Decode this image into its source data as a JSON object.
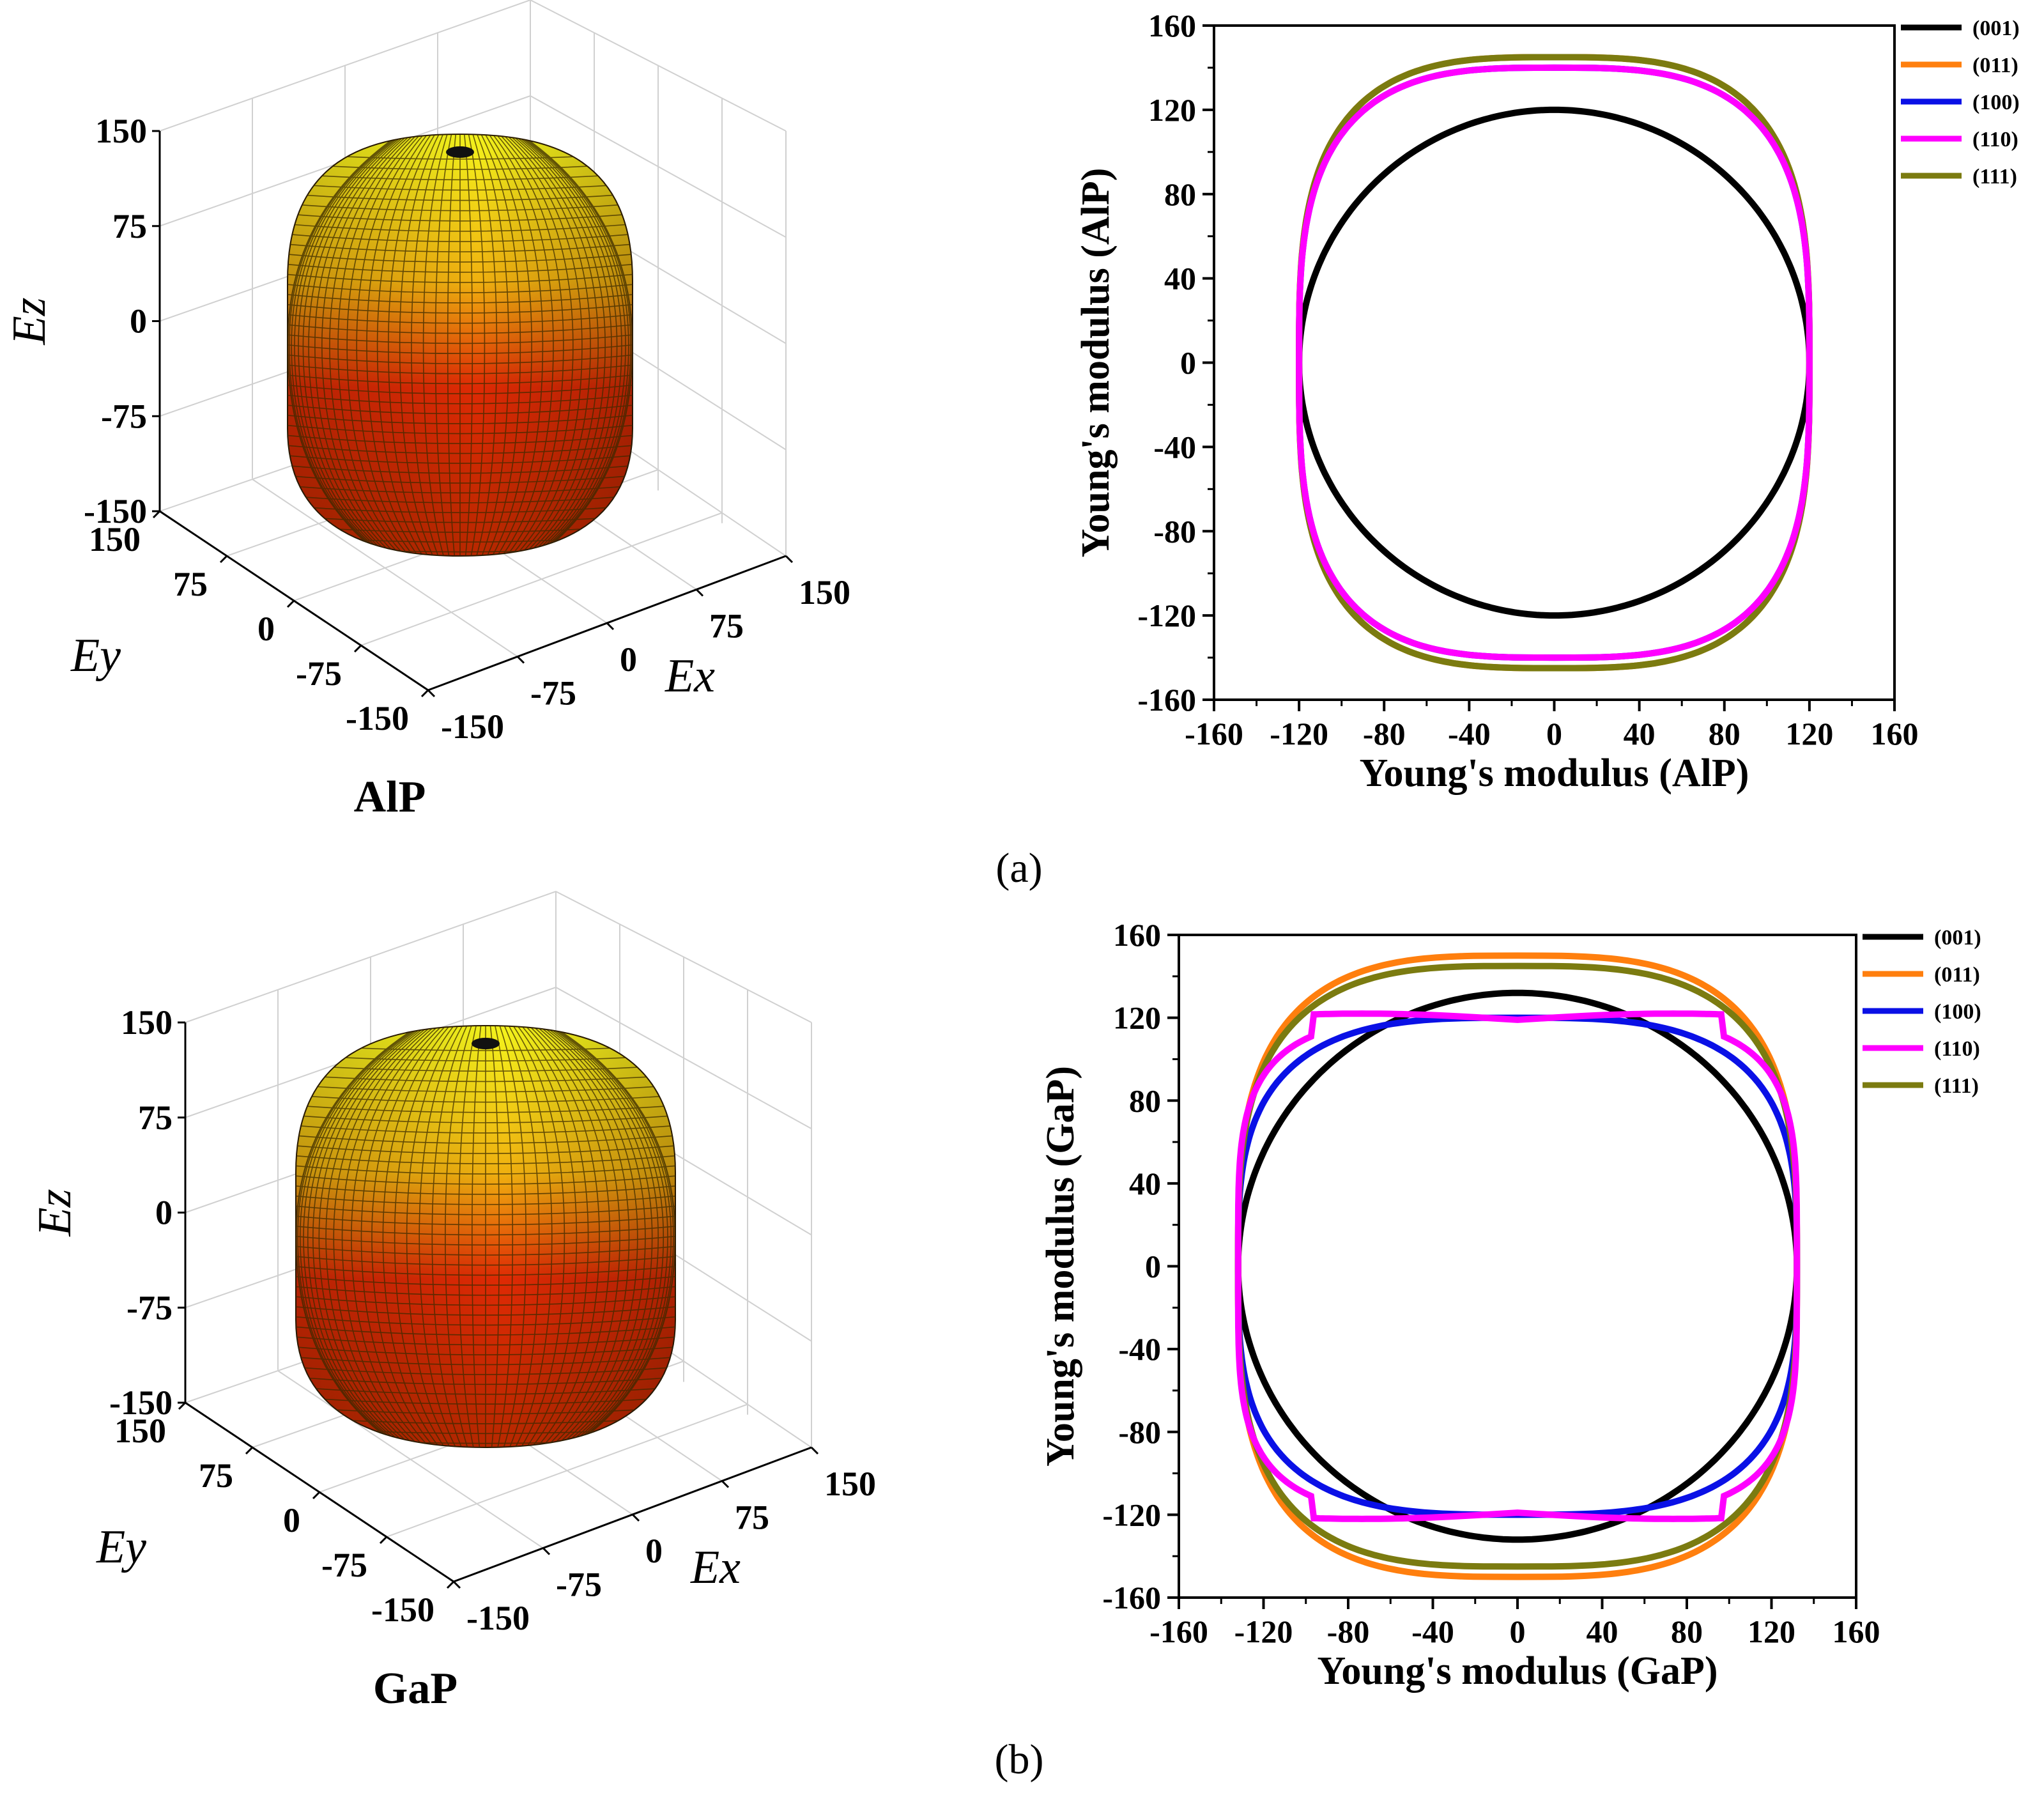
{
  "panels": {
    "a": {
      "label": "(a)"
    },
    "b": {
      "label": "(b)"
    }
  },
  "surface3d": [
    {
      "material": "AlP",
      "zlabel": "Ez",
      "ylabel": "Ey",
      "xlabel": "Ex",
      "ticks": [
        "150",
        "75",
        "0",
        "-75",
        "-150"
      ],
      "radius_xy": 120,
      "radius_z": 145,
      "colors": {
        "top": "#f2f21a",
        "bottom": "#cc1500",
        "mesh": "#3a2a00"
      }
    },
    {
      "material": "GaP",
      "zlabel": "Ez",
      "ylabel": "Ey",
      "xlabel": "Ex",
      "ticks": [
        "150",
        "75",
        "0",
        "-75",
        "-150"
      ],
      "radius_xy": 132,
      "radius_z": 150,
      "colors": {
        "top": "#f2f21a",
        "bottom": "#cc1500",
        "mesh": "#3a2a00"
      }
    }
  ],
  "chart_data": [
    {
      "type": "line",
      "title": "",
      "xlabel": "Young's modulus (AlP)",
      "ylabel": "Young's modulus (AlP)",
      "xlim": [
        -160,
        160
      ],
      "ylim": [
        -160,
        160
      ],
      "ticks": [
        -160,
        -120,
        -80,
        -40,
        0,
        40,
        80,
        120,
        160
      ],
      "tick_labels": [
        "-160",
        "-120",
        "-80",
        "-40",
        "0",
        "40",
        "80",
        "120",
        "160"
      ],
      "legend_position": "top-right outside",
      "series": [
        {
          "name": "(001)",
          "color": "#000000",
          "shape": "circle",
          "rx": 120,
          "ry": 120
        },
        {
          "name": "(011)",
          "color": "#ff7f0e",
          "shape": "superellipse",
          "rx": 120,
          "ry": 145
        },
        {
          "name": "(100)",
          "color": "#0a10e6",
          "shape": "superellipse",
          "rx": 120,
          "ry": 140
        },
        {
          "name": "(110)",
          "color": "#ff00ff",
          "shape": "superellipse",
          "rx": 120,
          "ry": 140
        },
        {
          "name": "(111)",
          "color": "#7b7b10",
          "shape": "superellipse",
          "rx": 120,
          "ry": 145
        }
      ]
    },
    {
      "type": "line",
      "title": "",
      "xlabel": "Young's modulus (GaP)",
      "ylabel": "Young's modulus (GaP)",
      "xlim": [
        -160,
        160
      ],
      "ylim": [
        -160,
        160
      ],
      "ticks": [
        -160,
        -120,
        -80,
        -40,
        0,
        40,
        80,
        120,
        160
      ],
      "tick_labels": [
        "-160",
        "-120",
        "-80",
        "-40",
        "0",
        "40",
        "80",
        "120",
        "160"
      ],
      "legend_position": "top-right outside",
      "series": [
        {
          "name": "(001)",
          "color": "#000000",
          "shape": "circle",
          "rx": 132,
          "ry": 132
        },
        {
          "name": "(011)",
          "color": "#ff7f0e",
          "shape": "superellipse",
          "rx": 132,
          "ry": 150
        },
        {
          "name": "(100)",
          "color": "#0a10e6",
          "shape": "superellipse",
          "rx": 132,
          "ry": 120
        },
        {
          "name": "(110)",
          "color": "#ff00ff",
          "shape": "wavy",
          "rx": 132,
          "ry": 120
        },
        {
          "name": "(111)",
          "color": "#7b7b10",
          "shape": "superellipse",
          "rx": 132,
          "ry": 145
        }
      ]
    }
  ]
}
